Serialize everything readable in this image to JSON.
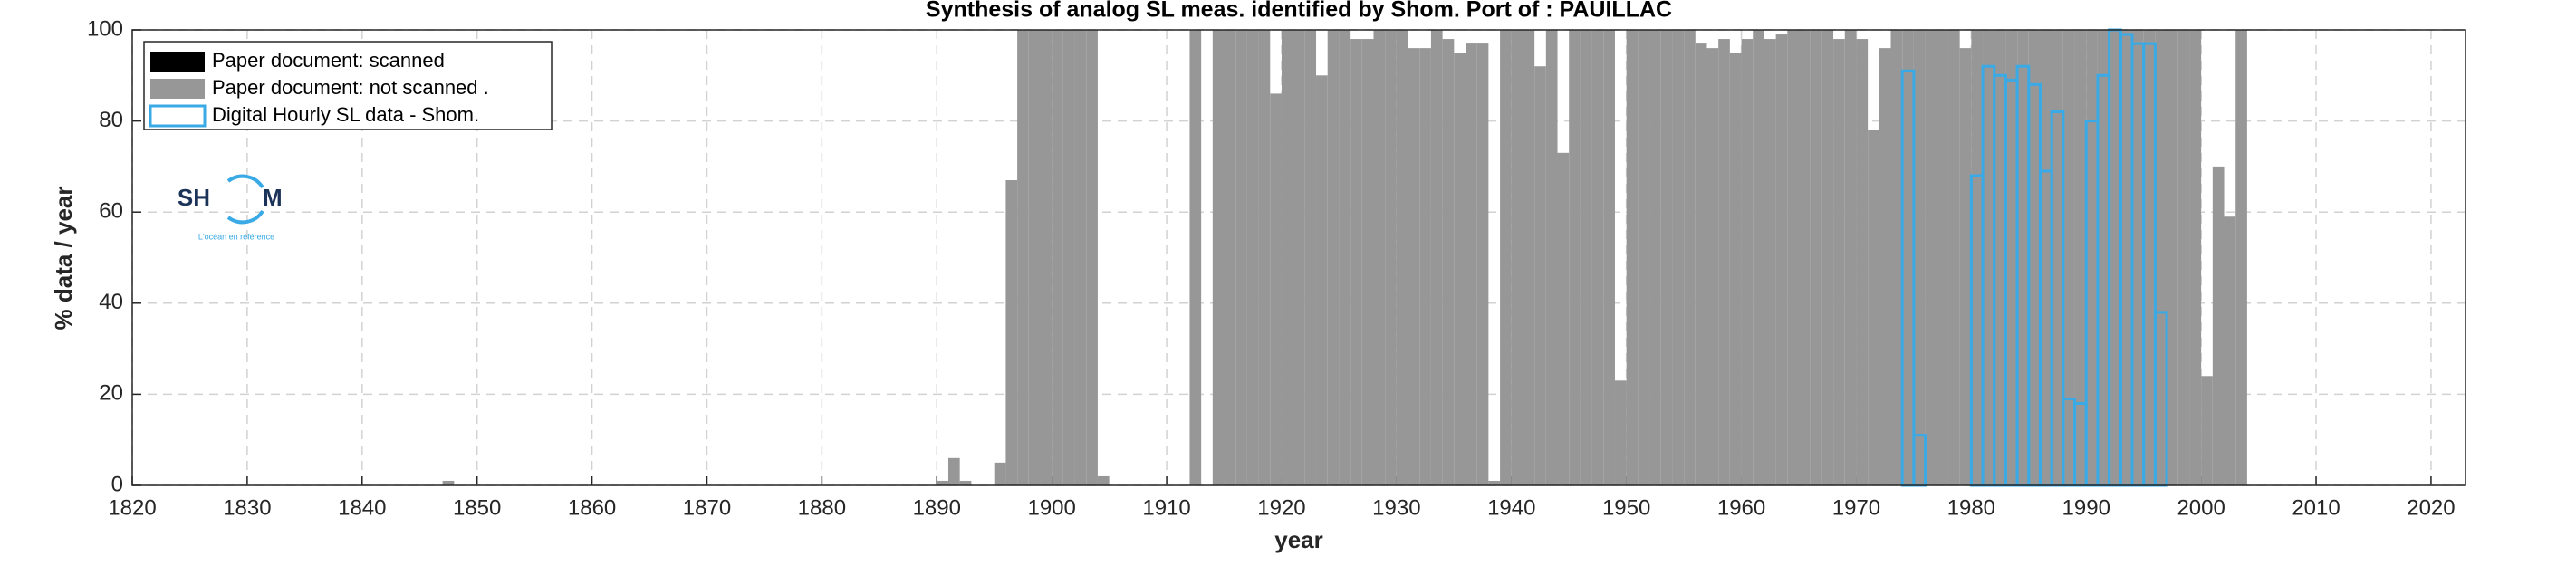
{
  "chart_data": {
    "type": "bar",
    "title": "Synthesis of analog SL meas. identified by Shom. Port of : PAUILLAC",
    "x_label": "year",
    "y_label": "% data / year",
    "xlim": [
      1820,
      2023
    ],
    "ylim": [
      0,
      100
    ],
    "xticks": [
      1820,
      1830,
      1840,
      1850,
      1860,
      1870,
      1880,
      1890,
      1900,
      1910,
      1920,
      1930,
      1940,
      1950,
      1960,
      1970,
      1980,
      1990,
      2000,
      2010,
      2020
    ],
    "yticks": [
      0,
      20,
      40,
      60,
      80,
      100
    ],
    "grid": true,
    "legend": "upper left",
    "logo": {
      "left": "SH",
      "right": "M",
      "tagline": "L'océan en référence"
    },
    "series": [
      {
        "name": "Paper document: scanned",
        "color": "#000000",
        "style": "filled",
        "x": [],
        "values": []
      },
      {
        "name": "Paper document: not scanned   .",
        "color": "#979797",
        "style": "filled",
        "x": [
          1847,
          1890,
          1891,
          1892,
          1895,
          1896,
          1897,
          1898,
          1899,
          1900,
          1901,
          1902,
          1903,
          1904,
          1912,
          1914,
          1915,
          1916,
          1917,
          1918,
          1919,
          1920,
          1921,
          1922,
          1923,
          1924,
          1925,
          1926,
          1927,
          1928,
          1929,
          1930,
          1931,
          1932,
          1933,
          1934,
          1935,
          1936,
          1937,
          1938,
          1939,
          1940,
          1941,
          1942,
          1943,
          1944,
          1945,
          1946,
          1947,
          1948,
          1949,
          1950,
          1951,
          1952,
          1953,
          1954,
          1955,
          1956,
          1957,
          1958,
          1959,
          1960,
          1961,
          1962,
          1963,
          1964,
          1965,
          1966,
          1967,
          1968,
          1969,
          1970,
          1971,
          1972,
          1973,
          1974,
          1975,
          1976,
          1977,
          1978,
          1979,
          1980,
          1981,
          1982,
          1983,
          1984,
          1985,
          1986,
          1987,
          1988,
          1989,
          1990,
          1991,
          1992,
          1993,
          1994,
          1995,
          1996,
          1997,
          1998,
          1999,
          2000,
          2001,
          2002,
          2003
        ],
        "values": [
          1,
          1,
          6,
          1,
          5,
          67,
          100,
          100,
          100,
          100,
          100,
          100,
          100,
          2,
          100,
          100,
          100,
          100,
          100,
          100,
          86,
          100,
          100,
          100,
          90,
          100,
          100,
          98,
          98,
          100,
          100,
          100,
          96,
          96,
          100,
          98,
          95,
          97,
          97,
          1,
          100,
          100,
          100,
          92,
          100,
          73,
          100,
          100,
          100,
          100,
          23,
          100,
          100,
          100,
          100,
          100,
          100,
          97,
          96,
          98,
          95,
          98,
          100,
          98,
          99,
          100,
          100,
          100,
          100,
          98,
          100,
          98,
          78,
          96,
          100,
          100,
          100,
          100,
          100,
          100,
          96,
          100,
          100,
          100,
          100,
          100,
          100,
          100,
          100,
          100,
          100,
          100,
          100,
          100,
          100,
          100,
          100,
          100,
          100,
          100,
          100,
          24,
          70,
          59,
          100
        ]
      },
      {
        "name": "Digital Hourly SL data - Shom.",
        "color": "#3aaae6",
        "style": "outline",
        "x": [
          1974,
          1975,
          1980,
          1981,
          1982,
          1983,
          1984,
          1985,
          1986,
          1987,
          1988,
          1989,
          1990,
          1991,
          1992,
          1993,
          1994,
          1995,
          1996
        ],
        "values": [
          91,
          11,
          68,
          92,
          90,
          89,
          92,
          88,
          69,
          82,
          19,
          18,
          80,
          90,
          100,
          99,
          97,
          97,
          38
        ]
      }
    ]
  }
}
